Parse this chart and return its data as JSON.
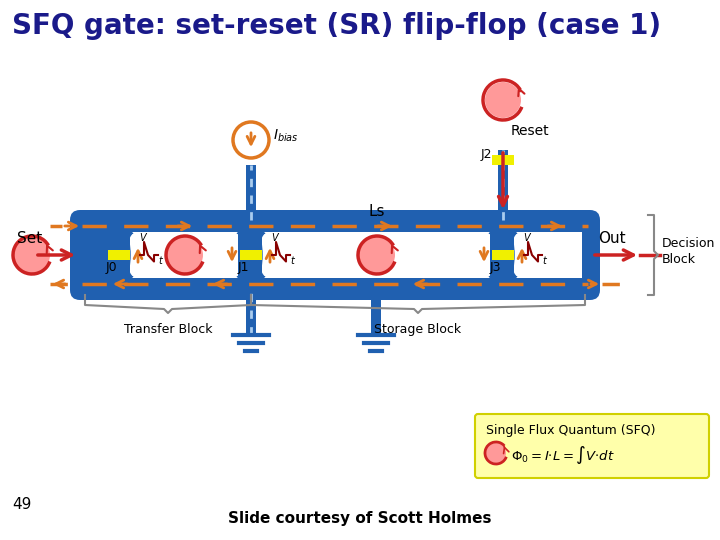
{
  "title": "SFQ gate: set-reset (SR) flip-flop (case 1)",
  "title_color": "#1a1a8a",
  "title_fontsize": 20,
  "bg_color": "#ffffff",
  "blue": "#2060b0",
  "orange": "#e07820",
  "yellow": "#f0f000",
  "red": "#cc2222",
  "red_dark": "#880000",
  "pink": "#ff9999",
  "gray": "#888888",
  "slide_credit": "Slide courtesy of Scott Holmes",
  "page_num": "49",
  "figw": 7.2,
  "figh": 5.4,
  "dpi": 100
}
